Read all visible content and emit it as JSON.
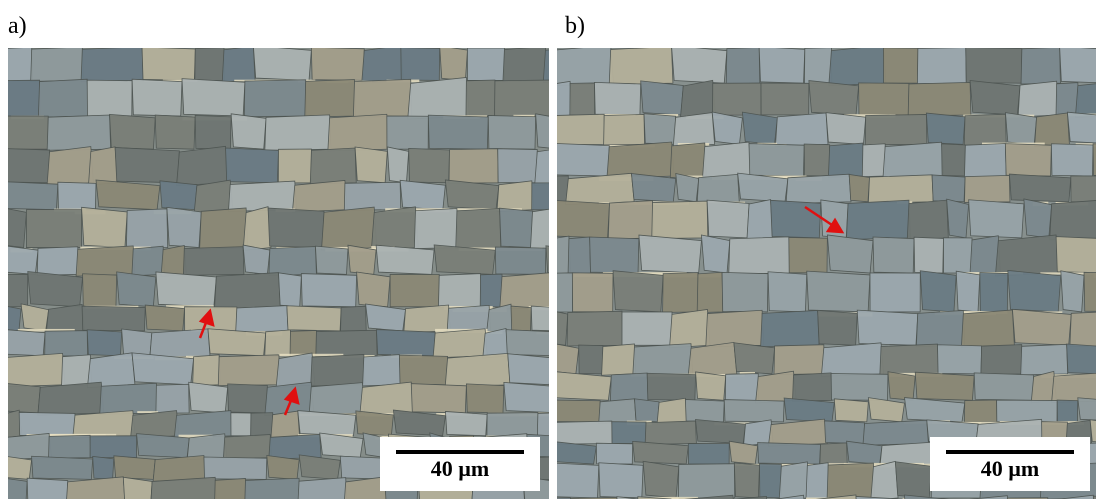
{
  "panels": [
    {
      "label": "a)",
      "scale_bar": "40 µm"
    },
    {
      "label": "b)",
      "scale_bar": "40 µm"
    }
  ]
}
